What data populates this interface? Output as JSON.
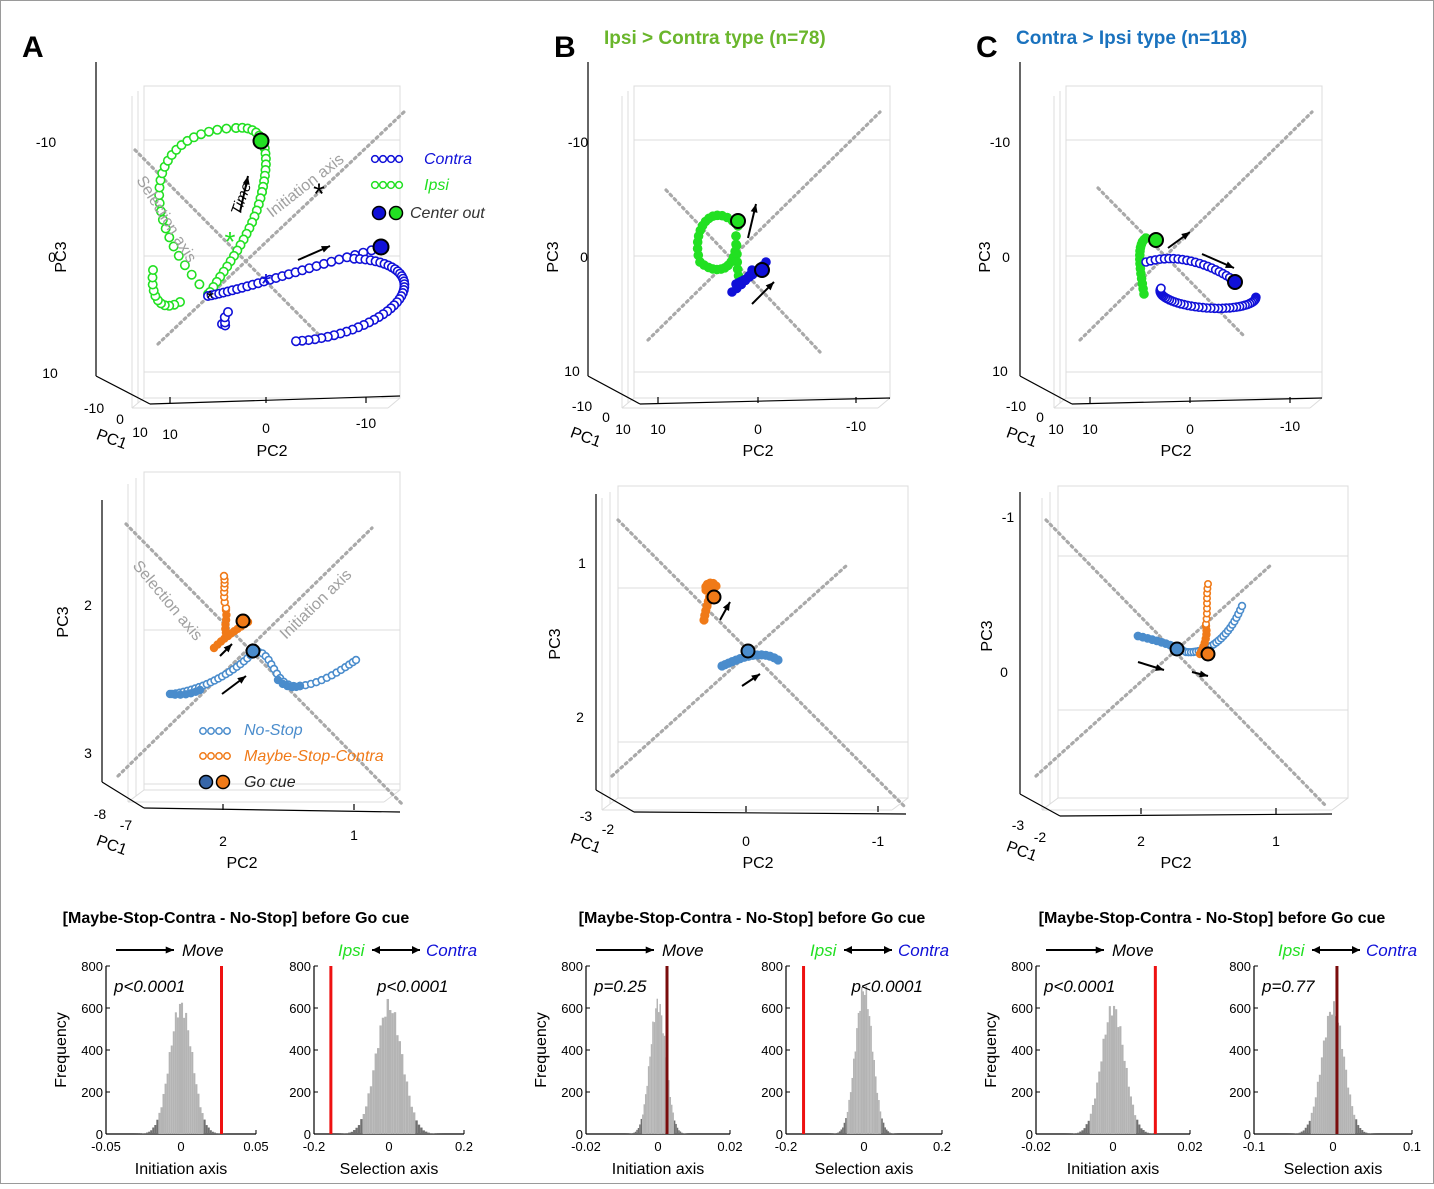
{
  "panel_labels": {
    "A": "A",
    "B": "B",
    "C": "C"
  },
  "panel_titles": {
    "B": "Ipsi > Contra type (n=78)",
    "C": "Contra > Ipsi type (n=118)"
  },
  "colors": {
    "contra": "#1010d8",
    "ipsi": "#22e022",
    "nostop": "#4a8ccc",
    "maybe": "#f07a18",
    "axis_dotted": "#a9a9a9",
    "grid": "#dcdcdc",
    "hist": "#b4b4b4",
    "hist_dark": "#707070",
    "obs_red": "#ee1111",
    "obs_dark": "#7a0d0d",
    "title_B": "#6ab62c",
    "title_C": "#1a72be"
  },
  "axis_labels": {
    "pc1": "PC1",
    "pc2": "PC2",
    "pc3": "PC3"
  },
  "pca_top": {
    "pc3_ticks": [
      "-10",
      "0",
      "10"
    ],
    "pc1_ticks": [
      "-10",
      "0",
      "10"
    ],
    "pc2_ticks": [
      "10",
      "0",
      "-10"
    ],
    "legend": {
      "contra": "Contra",
      "ipsi": "Ipsi",
      "center_out": "Center out"
    },
    "axis_text": {
      "selection": "Selection axis",
      "initiation": "Initiation axis",
      "time": "Time"
    }
  },
  "pca_bottom": {
    "A": {
      "pc3_ticks": [
        "2",
        "3"
      ],
      "pc1_ticks": [
        "-8",
        "-7"
      ],
      "pc2_ticks": [
        "2",
        "1"
      ]
    },
    "B": {
      "pc3_ticks": [
        "1",
        "2"
      ],
      "pc1_ticks": [
        "-3",
        "-2"
      ],
      "pc2_ticks": [
        "0",
        "-1"
      ]
    },
    "C": {
      "pc3_ticks": [
        "-1",
        "0"
      ],
      "pc1_ticks": [
        "-3",
        "-2"
      ],
      "pc2_ticks": [
        "2",
        "1"
      ]
    },
    "legend": {
      "nostop": "No-Stop",
      "maybe": "Maybe-Stop-Contra",
      "go_cue": "Go cue"
    }
  },
  "hist_common": {
    "section_title": "[Maybe-Stop-Contra - No-Stop] before Go cue",
    "move": "Move",
    "ipsi": "Ipsi",
    "contra": "Contra",
    "ylabel": "Frequency",
    "yticks": [
      "0",
      "200",
      "400",
      "600",
      "800"
    ],
    "xlabel_init": "Initiation axis",
    "xlabel_sel": "Selection axis"
  },
  "chart_data": [
    {
      "type": "bar",
      "panel": "A",
      "axis": "Initiation axis",
      "xlim": [
        -0.05,
        0.05
      ],
      "ylim": [
        0,
        800
      ],
      "xticks": [
        "-0.05",
        "0",
        "0.05"
      ],
      "null_center": 0.0,
      "null_sd": 0.0075,
      "null_peak": 610,
      "observed": 0.027,
      "observed_color": "red",
      "p_text": "p<0.0001"
    },
    {
      "type": "bar",
      "panel": "A",
      "axis": "Selection axis",
      "xlim": [
        -0.2,
        0.2
      ],
      "ylim": [
        0,
        800
      ],
      "xticks": [
        "-0.2",
        "0",
        "0.2"
      ],
      "null_center": 0.0,
      "null_sd": 0.035,
      "null_peak": 610,
      "observed": -0.155,
      "observed_color": "red",
      "p_text": "p<0.0001"
    },
    {
      "type": "bar",
      "panel": "B",
      "axis": "Initiation axis",
      "xlim": [
        -0.02,
        0.02
      ],
      "ylim": [
        0,
        800
      ],
      "xticks": [
        "-0.02",
        "0",
        "0.02"
      ],
      "null_center": 0.0,
      "null_sd": 0.0022,
      "null_peak": 620,
      "observed": 0.0025,
      "observed_color": "dark",
      "p_text": "p=0.25"
    },
    {
      "type": "bar",
      "panel": "B",
      "axis": "Selection axis",
      "xlim": [
        -0.2,
        0.2
      ],
      "ylim": [
        0,
        800
      ],
      "xticks": [
        "-0.2",
        "0",
        "0.2"
      ],
      "null_center": 0.0,
      "null_sd": 0.022,
      "null_peak": 690,
      "observed": -0.155,
      "observed_color": "red",
      "p_text": "p<0.0001"
    },
    {
      "type": "bar",
      "panel": "C",
      "axis": "Initiation axis",
      "xlim": [
        -0.02,
        0.02
      ],
      "ylim": [
        0,
        800
      ],
      "xticks": [
        "-0.02",
        "0",
        "0.02"
      ],
      "null_center": 0.0,
      "null_sd": 0.003,
      "null_peak": 600,
      "observed": 0.011,
      "observed_color": "red",
      "p_text": "p<0.0001"
    },
    {
      "type": "bar",
      "panel": "C",
      "axis": "Selection axis",
      "xlim": [
        -0.1,
        0.1
      ],
      "ylim": [
        0,
        800
      ],
      "xticks": [
        "-0.1",
        "0",
        "0.1"
      ],
      "null_center": 0.0,
      "null_sd": 0.014,
      "null_peak": 600,
      "observed": 0.005,
      "observed_color": "dark",
      "p_text": "p=0.77"
    }
  ]
}
